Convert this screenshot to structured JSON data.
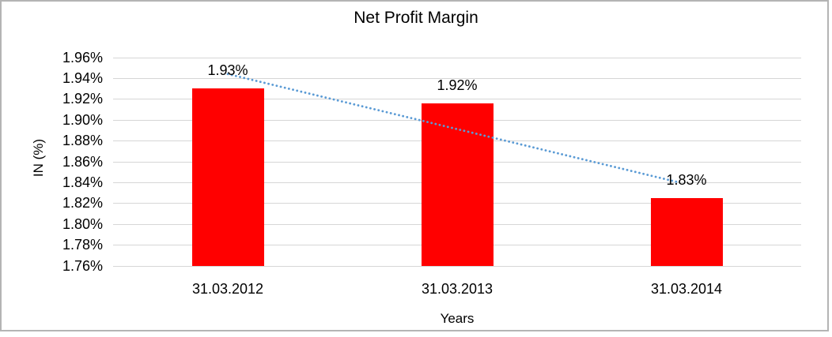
{
  "chart_data": {
    "type": "bar",
    "title": "Net Profit Margin",
    "xlabel": "Years",
    "ylabel": "IN (%)",
    "categories": [
      "31.03.2012",
      "31.03.2013",
      "31.03.2014"
    ],
    "values": [
      1.93,
      1.92,
      1.83
    ],
    "rendered_values": [
      1.93,
      1.916,
      1.825
    ],
    "data_labels": [
      "1.93%",
      "1.92%",
      "1.83%"
    ],
    "y_ticks": [
      "1.96%",
      "1.94%",
      "1.92%",
      "1.90%",
      "1.88%",
      "1.86%",
      "1.84%",
      "1.82%",
      "1.80%",
      "1.78%",
      "1.76%"
    ],
    "ylim": [
      1.76,
      1.96
    ],
    "grid": true,
    "legend": false,
    "bar_color": "#ff0000",
    "trendline": {
      "style": "dotted",
      "color": "#5b9bd5",
      "start_value": 1.944,
      "end_value": 1.84
    }
  },
  "colors": {
    "background": "#ffffff",
    "border": "#b4b4b4",
    "gridline": "#d6d6d6",
    "text": "#000000"
  }
}
